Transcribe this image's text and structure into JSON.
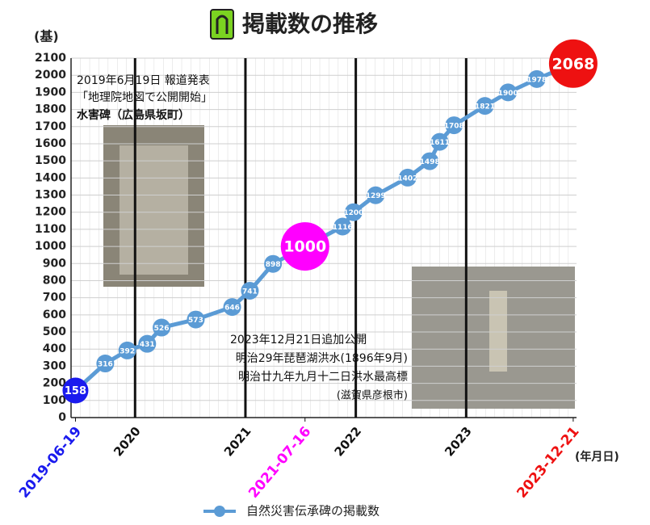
{
  "chart_data": {
    "type": "line",
    "title": "掲載数の推移",
    "y_label": "(基)",
    "x_label": "(年月日)",
    "series": [
      {
        "name": "自然災害伝承碑の掲載数",
        "color": "#5b9bd5",
        "x": [
          2019.46,
          2019.73,
          2019.93,
          2020.11,
          2020.24,
          2020.55,
          2020.88,
          2021.04,
          2021.25,
          2021.54,
          2021.88,
          2021.98,
          2022.18,
          2022.47,
          2022.67,
          2022.76,
          2022.89,
          2023.17,
          2023.38,
          2023.64,
          2023.97
        ],
        "values": [
          158,
          316,
          392,
          431,
          526,
          573,
          646,
          741,
          898,
          1000,
          1116,
          1200,
          1299,
          1402,
          1498,
          1611,
          1708,
          1821,
          1900,
          1978,
          2068
        ],
        "marker_colors": [
          "#1a1aee",
          "#5b9bd5",
          "#5b9bd5",
          "#5b9bd5",
          "#5b9bd5",
          "#5b9bd5",
          "#5b9bd5",
          "#5b9bd5",
          "#5b9bd5",
          "#ff00ff",
          "#5b9bd5",
          "#5b9bd5",
          "#5b9bd5",
          "#5b9bd5",
          "#5b9bd5",
          "#5b9bd5",
          "#5b9bd5",
          "#5b9bd5",
          "#5b9bd5",
          "#5b9bd5",
          "#ee1111"
        ]
      }
    ],
    "xlim": [
      2019.42,
      2024.0
    ],
    "xticks": [
      {
        "value": 2019.46,
        "label": "2019-06-19",
        "color": "#1a1aee"
      },
      2020,
      2021,
      {
        "value": 2021.54,
        "label": "2021-07-16",
        "color": "#ff00ff"
      },
      2022,
      2023,
      {
        "value": 2023.97,
        "label": "2023-12-21",
        "color": "#ee1111"
      }
    ],
    "ylim": [
      0,
      2100
    ],
    "yticks": [
      0,
      100,
      200,
      300,
      400,
      500,
      600,
      700,
      800,
      900,
      1000,
      1100,
      1200,
      1300,
      1400,
      1500,
      1600,
      1700,
      1800,
      1900,
      2000,
      2100
    ],
    "grid": true,
    "annotations": [
      "2019年6月19日 報道発表",
      "「地理院地図で公開開始」",
      "水害碑（広島県坂町）",
      "2023年12月21日追加公開",
      "明治29年琵琶湖洪水(1896年9月)",
      "明治廿九年九月十二日洪水最高標",
      "(滋賀県彦根市)"
    ]
  }
}
